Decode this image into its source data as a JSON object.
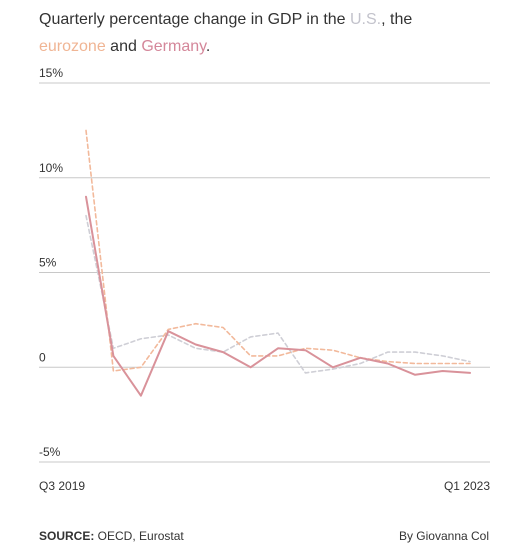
{
  "title": {
    "part1": "Quarterly percentage change in GDP in the ",
    "us": "U.S.",
    "part2": ", the ",
    "eurozone": "eurozone",
    "part3": " and ",
    "germany": "Germany",
    "part4": "."
  },
  "footer": {
    "source_label": "SOURCE:",
    "source_text": " OECD, Eurostat",
    "byline": "By Giovanna Col"
  },
  "colors": {
    "us": "#cfcfd6",
    "eurozone": "#f2b99b",
    "germany": "#d9929a",
    "grid": "#c8c8c8",
    "text": "#333333"
  },
  "chart_data": {
    "type": "line",
    "title": "Quarterly percentage change in GDP in the U.S., the eurozone and Germany.",
    "xlabel": "",
    "ylabel": "",
    "ylim": [
      -5,
      15
    ],
    "y_ticks": [
      {
        "value": 15,
        "label": "15%"
      },
      {
        "value": 10,
        "label": "10%"
      },
      {
        "value": 5,
        "label": "5%"
      },
      {
        "value": 0,
        "label": "0"
      },
      {
        "value": -5,
        "label": "-5%"
      }
    ],
    "x_tick_labels": [
      "Q3 2019",
      "Q1 2023"
    ],
    "x": [
      "Q3 2019",
      "Q4 2019",
      "Q1 2020",
      "Q2 2020",
      "Q3 2020",
      "Q4 2020",
      "Q1 2021",
      "Q2 2021",
      "Q3 2021",
      "Q4 2021",
      "Q1 2022",
      "Q2 2022",
      "Q3 2022",
      "Q4 2022",
      "Q1 2023"
    ],
    "grid": true,
    "series": [
      {
        "name": "U.S.",
        "style": "dashed",
        "values": [
          8.0,
          1.0,
          1.5,
          1.7,
          1.0,
          0.8,
          1.6,
          1.8,
          -0.3,
          -0.1,
          0.2,
          0.8,
          0.8,
          0.6,
          0.3
        ]
      },
      {
        "name": "eurozone",
        "style": "dashed",
        "values": [
          12.5,
          -0.2,
          0.0,
          2.0,
          2.3,
          2.1,
          0.6,
          0.6,
          1.0,
          0.9,
          0.5,
          0.3,
          0.2,
          0.2,
          0.2
        ]
      },
      {
        "name": "Germany",
        "style": "solid",
        "values": [
          9.0,
          0.6,
          -1.5,
          1.9,
          1.2,
          0.8,
          0.0,
          1.0,
          0.9,
          0.0,
          0.5,
          0.2,
          -0.4,
          -0.2,
          -0.3
        ]
      }
    ]
  }
}
